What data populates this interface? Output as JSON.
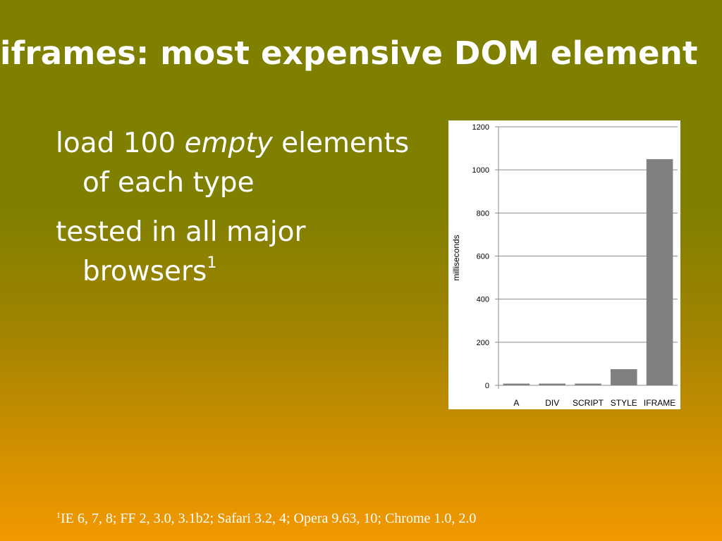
{
  "slide": {
    "title": "iframes: most expensive DOM element",
    "bullets": [
      {
        "before": "load 100 ",
        "emphasis": "empty",
        "after": " elements of each type",
        "sup": ""
      },
      {
        "before": "tested in all major browsers",
        "emphasis": "",
        "after": "",
        "sup": "1"
      }
    ],
    "footnote": {
      "marker": "1",
      "text": "IE 6, 7, 8; FF 2, 3.0, 3.1b2; Safari 3.2, 4; Opera 9.63, 10; Chrome 1.0, 2.0"
    }
  },
  "chart_data": {
    "type": "bar",
    "title": "",
    "xlabel": "",
    "ylabel": "milliseconds",
    "categories": [
      "A",
      "DIV",
      "SCRIPT",
      "STYLE",
      "IFRAME"
    ],
    "values": [
      8,
      8,
      8,
      75,
      1050
    ],
    "ylim": [
      0,
      1200
    ],
    "yticks": [
      0,
      200,
      400,
      600,
      800,
      1000,
      1200
    ],
    "grid": true,
    "bar_color": "#808080",
    "grid_color": "#8c8c8c"
  }
}
